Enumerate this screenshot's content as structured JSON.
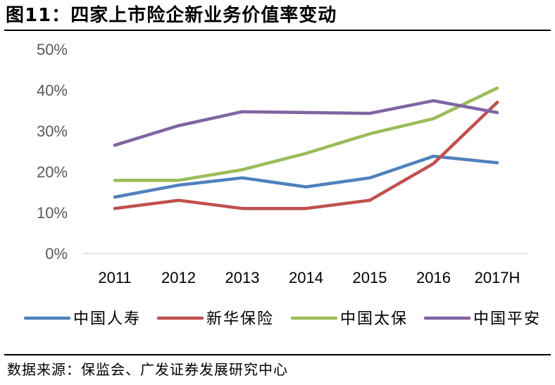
{
  "header": {
    "figure_label": "图11：",
    "title": "四家上市险企新业务价值率变动"
  },
  "footer": {
    "source": "数据来源：保监会、广发证券发展研究中心"
  },
  "chart_data": {
    "type": "line",
    "title": "四家上市险企新业务价值率变动",
    "xlabel": "",
    "ylabel": "",
    "categories": [
      "2011",
      "2012",
      "2013",
      "2014",
      "2015",
      "2016",
      "2017H"
    ],
    "y_ticks": [
      "0%",
      "10%",
      "20%",
      "30%",
      "40%",
      "50%"
    ],
    "ylim": [
      0,
      50
    ],
    "grid": false,
    "legend_position": "bottom",
    "series": [
      {
        "name": "中国人寿",
        "color": "#4f81bd",
        "values": [
          13.8,
          16.7,
          18.5,
          16.3,
          18.5,
          23.8,
          22.2
        ]
      },
      {
        "name": "新华保险",
        "color": "#c0504d",
        "values": [
          11.0,
          13.0,
          11.0,
          11.0,
          13.0,
          22.0,
          37.0
        ]
      },
      {
        "name": "中国太保",
        "color": "#9bbb59",
        "values": [
          17.9,
          17.9,
          20.5,
          24.5,
          29.3,
          33.0,
          40.5
        ]
      },
      {
        "name": "中国平安",
        "color": "#8064a2",
        "values": [
          26.5,
          31.3,
          34.7,
          34.5,
          34.3,
          37.4,
          34.5
        ]
      }
    ]
  }
}
